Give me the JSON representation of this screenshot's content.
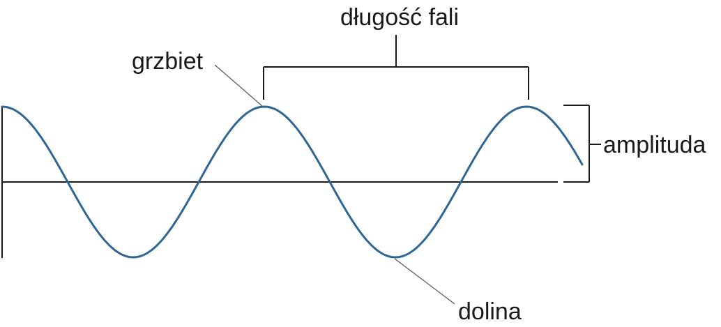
{
  "labels": {
    "wavelength": "długość fali",
    "crest": "grzbiet",
    "amplitude": "amplituda",
    "trough": "dolina"
  },
  "colors": {
    "wave": "#2e6593",
    "lines": "#1a1a1a"
  }
}
